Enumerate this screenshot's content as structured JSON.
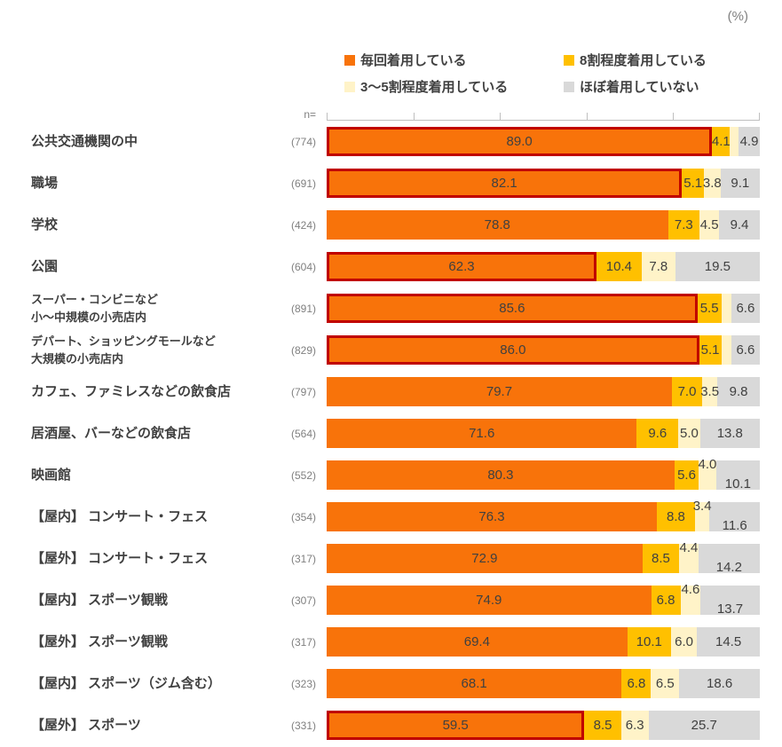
{
  "unit_label": "(%)",
  "n_header": "n=",
  "colors": {
    "series": [
      "#F8730A",
      "#FFC000",
      "#FFF3C8",
      "#D9D9D9"
    ],
    "highlight_border": "#C00000",
    "axis": "#BFBFBF",
    "value_text": "#404040",
    "n_text": "#808080"
  },
  "legend": {
    "items": [
      {
        "label": "毎回着用している",
        "color": "#F8730A"
      },
      {
        "label": "8割程度着用している",
        "color": "#FFC000"
      },
      {
        "label": "3〜5割程度着用している",
        "color": "#FFF3C8"
      },
      {
        "label": "ほぼ着用していない",
        "color": "#D9D9D9"
      }
    ]
  },
  "chart_data": {
    "type": "bar",
    "orientation": "horizontal",
    "stacked": true,
    "unit": "%",
    "xlim": [
      0,
      100
    ],
    "x_ticks": [
      0,
      20,
      40,
      60,
      80,
      100
    ],
    "x_tick_labels_shown": false,
    "legend_position": "top",
    "series_names": [
      "毎回着用している",
      "8割程度着用している",
      "3〜5割程度着用している",
      "ほぼ着用していない"
    ],
    "rows": [
      {
        "label_lines": [
          "公共交通機関の中"
        ],
        "n": "(774)",
        "values": [
          89.0,
          4.1,
          2.0,
          4.9
        ],
        "display_labels": [
          "89.0",
          "4.1",
          "",
          "4.9"
        ],
        "highlight": true,
        "stagger": false
      },
      {
        "label_lines": [
          "職場"
        ],
        "n": "(691)",
        "values": [
          82.1,
          5.1,
          3.8,
          9.1
        ],
        "display_labels": [
          "82.1",
          "5.1",
          "3.8",
          "9.1"
        ],
        "highlight": true,
        "stagger": false
      },
      {
        "label_lines": [
          "学校"
        ],
        "n": "(424)",
        "values": [
          78.8,
          7.3,
          4.5,
          9.4
        ],
        "display_labels": [
          "78.8",
          "7.3",
          "4.5",
          "9.4"
        ],
        "highlight": false,
        "stagger": false
      },
      {
        "label_lines": [
          "公園"
        ],
        "n": "(604)",
        "values": [
          62.3,
          10.4,
          7.8,
          19.5
        ],
        "display_labels": [
          "62.3",
          "10.4",
          "7.8",
          "19.5"
        ],
        "highlight": true,
        "stagger": false
      },
      {
        "label_lines": [
          "スーパー・コンビニなど",
          "小〜中規模の小売店内"
        ],
        "n": "(891)",
        "values": [
          85.6,
          5.5,
          2.3,
          6.6
        ],
        "display_labels": [
          "85.6",
          "5.5",
          "",
          "6.6"
        ],
        "highlight": true,
        "stagger": false
      },
      {
        "label_lines": [
          "デパート、ショッピングモールなど",
          "大規模の小売店内"
        ],
        "n": "(829)",
        "values": [
          86.0,
          5.1,
          2.3,
          6.6
        ],
        "display_labels": [
          "86.0",
          "5.1",
          "",
          "6.6"
        ],
        "highlight": true,
        "stagger": false
      },
      {
        "label_lines": [
          "カフェ、ファミレスなどの飲食店"
        ],
        "n": "(797)",
        "values": [
          79.7,
          7.0,
          3.5,
          9.8
        ],
        "display_labels": [
          "79.7",
          "7.0",
          "3.5",
          "9.8"
        ],
        "highlight": false,
        "stagger": false
      },
      {
        "label_lines": [
          "居酒屋、バーなどの飲食店"
        ],
        "n": "(564)",
        "values": [
          71.6,
          9.6,
          5.0,
          13.8
        ],
        "display_labels": [
          "71.6",
          "9.6",
          "5.0",
          "13.8"
        ],
        "highlight": false,
        "stagger": false
      },
      {
        "label_lines": [
          "映画館"
        ],
        "n": "(552)",
        "values": [
          80.3,
          5.6,
          4.0,
          10.1
        ],
        "display_labels": [
          "80.3",
          "5.6",
          "4.0",
          "10.1"
        ],
        "highlight": false,
        "stagger": true
      },
      {
        "label_lines": [
          "【屋内】 コンサート・フェス"
        ],
        "n": "(354)",
        "values": [
          76.3,
          8.8,
          3.4,
          11.6
        ],
        "display_labels": [
          "76.3",
          "8.8",
          "3.4",
          "11.6"
        ],
        "highlight": false,
        "stagger": true
      },
      {
        "label_lines": [
          "【屋外】 コンサート・フェス"
        ],
        "n": "(317)",
        "values": [
          72.9,
          8.5,
          4.4,
          14.2
        ],
        "display_labels": [
          "72.9",
          "8.5",
          "4.4",
          "14.2"
        ],
        "highlight": false,
        "stagger": true
      },
      {
        "label_lines": [
          "【屋内】 スポーツ観戦"
        ],
        "n": "(307)",
        "values": [
          74.9,
          6.8,
          4.6,
          13.7
        ],
        "display_labels": [
          "74.9",
          "6.8",
          "4.6",
          "13.7"
        ],
        "highlight": false,
        "stagger": true
      },
      {
        "label_lines": [
          "【屋外】 スポーツ観戦"
        ],
        "n": "(317)",
        "values": [
          69.4,
          10.1,
          6.0,
          14.5
        ],
        "display_labels": [
          "69.4",
          "10.1",
          "6.0",
          "14.5"
        ],
        "highlight": false,
        "stagger": false
      },
      {
        "label_lines": [
          "【屋内】 スポーツ（ジム含む）"
        ],
        "n": "(323)",
        "values": [
          68.1,
          6.8,
          6.5,
          18.6
        ],
        "display_labels": [
          "68.1",
          "6.8",
          "6.5",
          "18.6"
        ],
        "highlight": false,
        "stagger": false
      },
      {
        "label_lines": [
          "【屋外】 スポーツ"
        ],
        "n": "(331)",
        "values": [
          59.5,
          8.5,
          6.3,
          25.7
        ],
        "display_labels": [
          "59.5",
          "8.5",
          "6.3",
          "25.7"
        ],
        "highlight": true,
        "stagger": false
      }
    ]
  }
}
